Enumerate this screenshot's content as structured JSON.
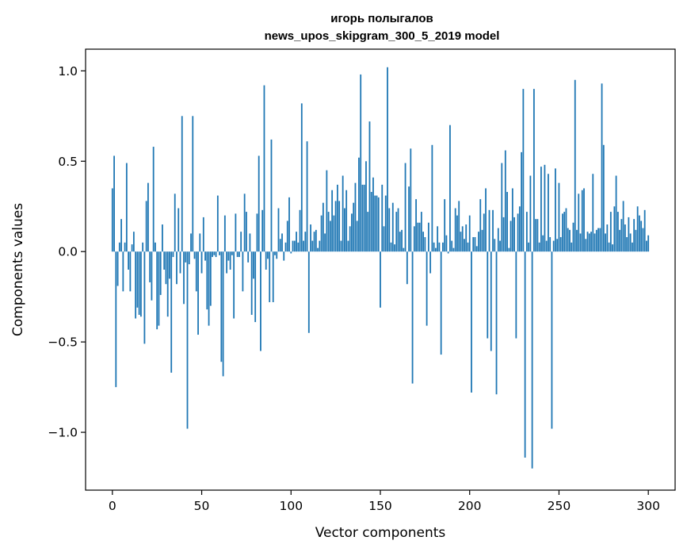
{
  "chart_data": {
    "type": "bar",
    "title": "игорь полыгалов",
    "subtitle": "news_upos_skipgram_300_5_2019 model",
    "xlabel": "Vector components",
    "ylabel": "Components values",
    "xlim": [
      -15,
      315
    ],
    "ylim": [
      -1.32,
      1.12
    ],
    "xticks": [
      0,
      50,
      100,
      150,
      200,
      250,
      300
    ],
    "xtick_labels": [
      "0",
      "50",
      "100",
      "150",
      "200",
      "250",
      "300"
    ],
    "yticks": [
      -1.0,
      -0.5,
      0.0,
      0.5,
      1.0
    ],
    "ytick_labels": [
      "−1.0",
      "−0.5",
      "0.0",
      "0.5",
      "1.0"
    ],
    "grid": false,
    "bar_color": "#1f77b4",
    "x": "component index 0..299",
    "values": [
      0.35,
      0.53,
      -0.75,
      -0.19,
      0.05,
      0.18,
      -0.22,
      0.05,
      0.49,
      -0.1,
      -0.22,
      0.04,
      0.11,
      -0.37,
      -0.31,
      -0.35,
      -0.36,
      0.05,
      -0.51,
      0.28,
      0.38,
      -0.17,
      -0.27,
      0.58,
      0.05,
      -0.43,
      -0.41,
      -0.24,
      0.15,
      -0.1,
      -0.18,
      -0.36,
      -0.15,
      -0.67,
      -0.03,
      0.32,
      -0.18,
      0.24,
      -0.12,
      0.75,
      -0.29,
      -0.06,
      -0.98,
      -0.07,
      0.1,
      0.75,
      -0.04,
      -0.22,
      -0.46,
      0.1,
      -0.12,
      0.19,
      -0.05,
      -0.32,
      -0.41,
      -0.3,
      -0.03,
      -0.02,
      -0.03,
      0.31,
      -0.02,
      -0.61,
      -0.69,
      0.2,
      -0.12,
      -0.05,
      -0.1,
      -0.02,
      -0.37,
      0.21,
      -0.03,
      -0.03,
      0.11,
      -0.22,
      0.32,
      0.22,
      -0.06,
      0.1,
      -0.35,
      -0.15,
      -0.39,
      0.21,
      0.53,
      -0.55,
      0.23,
      0.92,
      -0.1,
      -0.04,
      -0.28,
      0.62,
      -0.28,
      -0.02,
      -0.04,
      0.24,
      0.07,
      0.1,
      -0.05,
      0.05,
      0.17,
      0.3,
      -0.01,
      0.06,
      0.06,
      0.11,
      0.05,
      0.23,
      0.82,
      0.06,
      0.11,
      0.61,
      -0.45,
      0.15,
      0.06,
      0.11,
      0.12,
      0.02,
      0.06,
      0.2,
      0.27,
      0.1,
      0.45,
      0.22,
      0.17,
      0.34,
      0.2,
      0.28,
      0.37,
      0.28,
      0.06,
      0.42,
      0.24,
      0.34,
      0.06,
      0.14,
      0.21,
      0.27,
      0.38,
      0.17,
      0.52,
      0.98,
      0.37,
      0.37,
      0.5,
      0.22,
      0.72,
      0.33,
      0.41,
      0.31,
      0.31,
      0.3,
      -0.31,
      0.37,
      0.14,
      0.31,
      1.02,
      0.24,
      0.05,
      0.27,
      0.04,
      0.22,
      0.24,
      0.11,
      0.12,
      0.02,
      0.49,
      -0.18,
      0.36,
      0.57,
      -0.73,
      0.14,
      0.29,
      0.16,
      0.16,
      0.22,
      0.11,
      0.08,
      -0.41,
      0.16,
      -0.12,
      0.59,
      0.05,
      0.02,
      0.14,
      0.05,
      -0.57,
      0.05,
      0.29,
      0.09,
      -0.01,
      0.7,
      0.06,
      0.02,
      0.24,
      0.2,
      0.28,
      0.11,
      0.14,
      0.07,
      0.15,
      0.05,
      0.2,
      -0.78,
      0.08,
      0.08,
      0.03,
      0.11,
      0.29,
      0.12,
      0.21,
      0.35,
      -0.48,
      0.23,
      -0.55,
      0.23,
      0.07,
      -0.79,
      0.13,
      0.06,
      0.49,
      0.19,
      0.56,
      0.33,
      0.02,
      0.17,
      0.35,
      0.19,
      -0.48,
      0.21,
      0.25,
      0.55,
      0.9,
      -1.14,
      0.22,
      0.05,
      0.42,
      -1.2,
      0.9,
      0.18,
      0.18,
      0.05,
      0.47,
      0.09,
      0.48,
      0.06,
      0.43,
      0.08,
      -0.98,
      0.06,
      0.46,
      0.07,
      0.38,
      0.08,
      0.21,
      0.22,
      0.24,
      0.13,
      0.12,
      0.05,
      0.16,
      0.95,
      0.12,
      0.32,
      0.1,
      0.34,
      0.35,
      0.07,
      0.11,
      0.1,
      0.11,
      0.43,
      0.1,
      0.12,
      0.13,
      0.13,
      0.93,
      0.59,
      0.1,
      0.15,
      0.05,
      0.22,
      0.04,
      0.25,
      0.42,
      0.22,
      0.12,
      0.18,
      0.28,
      0.15,
      0.08,
      0.19,
      0.1,
      0.05,
      0.18,
      0.12,
      0.25,
      0.2,
      0.17,
      0.13,
      0.23,
      0.06,
      0.09
    ]
  }
}
